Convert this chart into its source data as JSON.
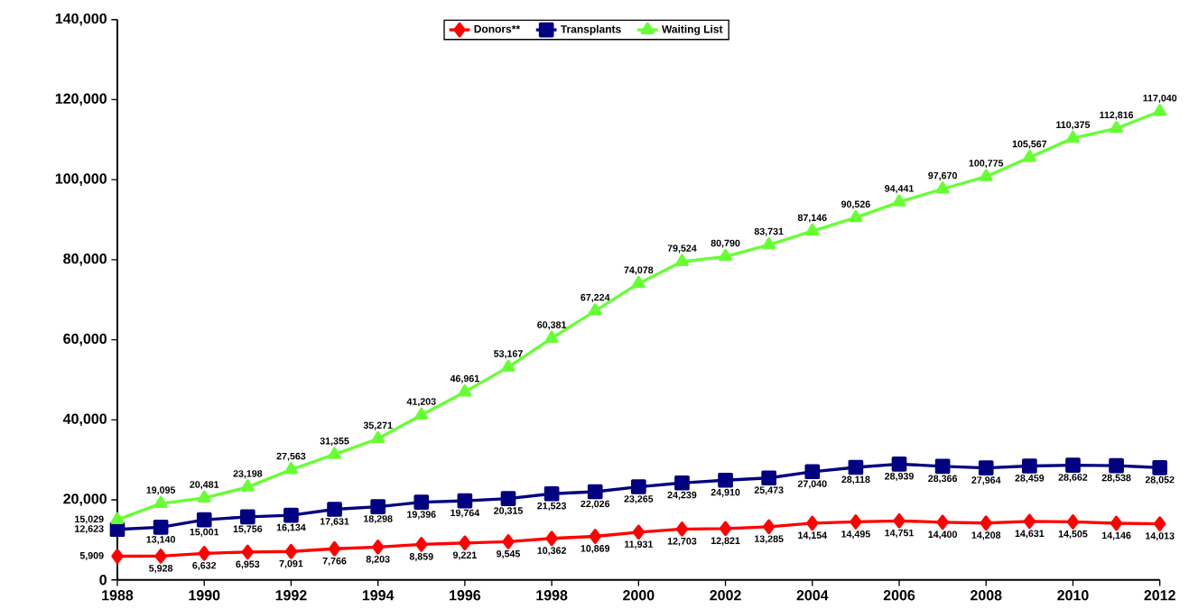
{
  "chart_data": {
    "type": "line",
    "x": [
      1988,
      1989,
      1990,
      1991,
      1992,
      1993,
      1994,
      1995,
      1996,
      1997,
      1998,
      1999,
      2000,
      2001,
      2002,
      2003,
      2004,
      2005,
      2006,
      2007,
      2008,
      2009,
      2010,
      2011,
      2012
    ],
    "series": [
      {
        "name": "Donors**",
        "color": "#ff0000",
        "marker": "diamond",
        "values": [
          5909,
          5928,
          6632,
          6953,
          7091,
          7766,
          8203,
          8859,
          9221,
          9545,
          10362,
          10869,
          11931,
          12703,
          12821,
          13285,
          14154,
          14495,
          14751,
          14400,
          14208,
          14631,
          14505,
          14146,
          14013
        ],
        "value_labels": [
          "5,909",
          "5,928",
          "6,632",
          "6,953",
          "7,091",
          "7,766",
          "8,203",
          "8,859",
          "9,221",
          "9,545",
          "10,362",
          "10,869",
          "11,931",
          "12,703",
          "12,821",
          "13,285",
          "14,154",
          "14,495",
          "14,751",
          "14,400",
          "14,208",
          "14,631",
          "14,505",
          "14,146",
          "14,013"
        ]
      },
      {
        "name": "Transplants",
        "color": "#000080",
        "marker": "square",
        "values": [
          12623,
          13140,
          15001,
          15756,
          16134,
          17631,
          18298,
          19396,
          19764,
          20315,
          21523,
          22026,
          23265,
          24239,
          24910,
          25473,
          27040,
          28118,
          28939,
          28366,
          27964,
          28459,
          28662,
          28538,
          28052
        ],
        "value_labels": [
          "12,623",
          "13,140",
          "15,001",
          "15,756",
          "16,134",
          "17,631",
          "18,298",
          "19,396",
          "19,764",
          "20,315",
          "21,523",
          "22,026",
          "23,265",
          "24,239",
          "24,910",
          "25,473",
          "27,040",
          "28,118",
          "28,939",
          "28,366",
          "27,964",
          "28,459",
          "28,662",
          "28,538",
          "28,052"
        ]
      },
      {
        "name": "Waiting List",
        "color": "#66ff33",
        "marker": "triangle",
        "values": [
          15029,
          19095,
          20481,
          23198,
          27563,
          31355,
          35271,
          41203,
          46961,
          53167,
          60381,
          67224,
          74078,
          79524,
          80790,
          83731,
          87146,
          90526,
          94441,
          97670,
          100775,
          105567,
          110375,
          112816,
          117040
        ],
        "value_labels": [
          "15,029",
          "19,095",
          "20,481",
          "23,198",
          "27,563",
          "31,355",
          "35,271",
          "41,203",
          "46,961",
          "53,167",
          "60,381",
          "67,224",
          "74,078",
          "79,524",
          "80,790",
          "83,731",
          "87,146",
          "90,526",
          "94,441",
          "97,670",
          "100,775",
          "105,567",
          "110,375",
          "112,816",
          "117,040"
        ]
      }
    ],
    "xlim": [
      1988,
      2012
    ],
    "xticks": [
      1988,
      1990,
      1992,
      1994,
      1996,
      1998,
      2000,
      2002,
      2004,
      2006,
      2008,
      2010,
      2012
    ],
    "ylim": [
      0,
      140000
    ],
    "yticks": [
      0,
      {
        "value": 20000,
        "label": "20,000"
      },
      {
        "value": 40000,
        "label": "40,000"
      },
      {
        "value": 60000,
        "label": "60,000"
      },
      {
        "value": 80000,
        "label": "80,000"
      },
      {
        "value": 100000,
        "label": "100,000"
      },
      {
        "value": 120000,
        "label": "120,000"
      },
      {
        "value": 140000,
        "label": "140,000"
      }
    ],
    "grid": false,
    "legend": "top"
  }
}
